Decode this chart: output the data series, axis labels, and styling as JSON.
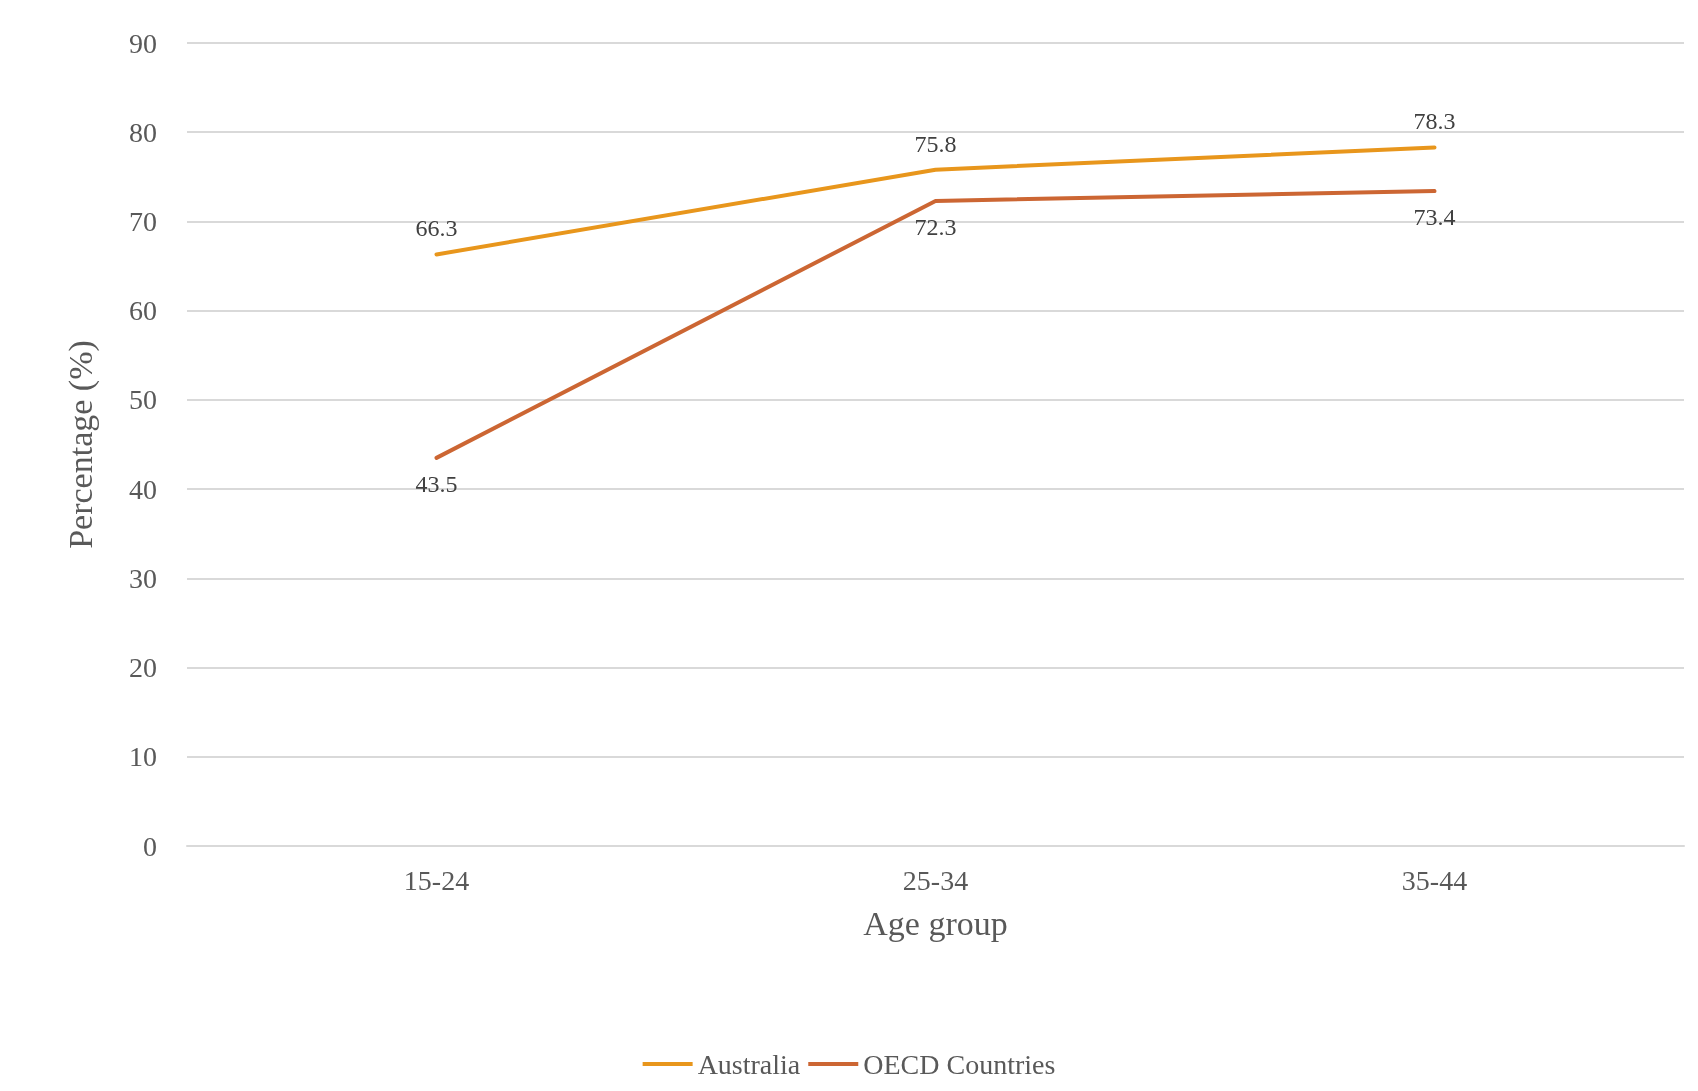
{
  "chart_data": {
    "type": "line",
    "xlabel": "Age group",
    "ylabel": "Percentage (%)",
    "categories": [
      "15-24",
      "25-34",
      "35-44"
    ],
    "series": [
      {
        "name": "Australia",
        "color": "#e8961c",
        "values": [
          66.3,
          75.8,
          78.3
        ]
      },
      {
        "name": "OECD Countries",
        "color": "#cc6633",
        "values": [
          43.5,
          72.3,
          73.4
        ]
      }
    ],
    "ylim": [
      0,
      90
    ],
    "yticks": [
      0,
      10,
      20,
      30,
      40,
      50,
      60,
      70,
      80,
      90
    ],
    "grid": "y",
    "legend": "bottom",
    "marker": "none",
    "line_style": "solid",
    "data_labels": true
  }
}
